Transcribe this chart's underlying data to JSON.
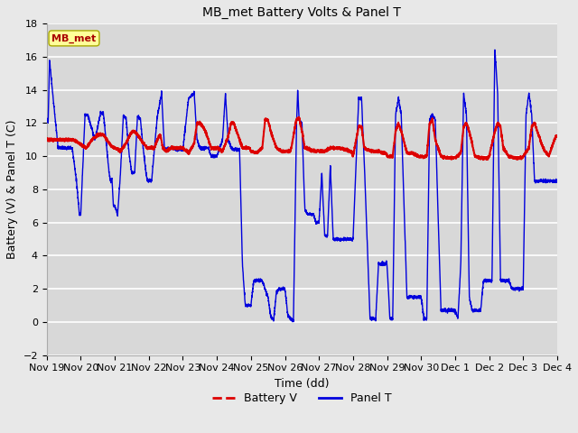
{
  "title": "MB_met Battery Volts & Panel T",
  "xlabel": "Time (dd)",
  "ylabel": "Battery (V) & Panel T (C)",
  "ylim": [
    -2,
    18
  ],
  "yticks": [
    -2,
    0,
    2,
    4,
    6,
    8,
    10,
    12,
    14,
    16,
    18
  ],
  "xtick_labels": [
    "Nov 19",
    "Nov 20",
    "Nov 21",
    "Nov 22",
    "Nov 23",
    "Nov 24",
    "Nov 25",
    "Nov 26",
    "Nov 27",
    "Nov 28",
    "Nov 29",
    "Nov 30",
    "Dec 1",
    "Dec 2",
    "Dec 3",
    "Dec 4"
  ],
  "fig_bg_color": "#e8e8e8",
  "plot_bg_color": "#d8d8d8",
  "grid_color": "#ffffff",
  "battery_color": "#dd0000",
  "panel_color": "#0000dd",
  "legend_label_battery": "Battery V",
  "legend_label_panel": "Panel T",
  "station_label": "MB_met",
  "station_label_color": "#aa0000",
  "station_box_facecolor": "#ffff99",
  "station_box_edgecolor": "#aaaa00"
}
